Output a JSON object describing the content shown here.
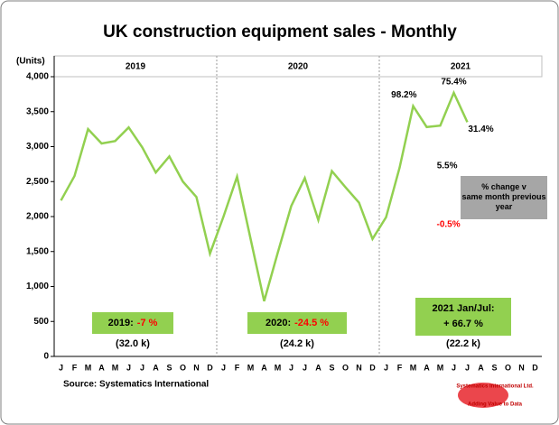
{
  "chart_data": {
    "type": "line",
    "title": "UK construction equipment sales - Monthly",
    "y_unit": "(Units)",
    "years": [
      "2019",
      "2020",
      "2021"
    ],
    "categories": [
      "J",
      "F",
      "M",
      "A",
      "M",
      "J",
      "J",
      "A",
      "S",
      "O",
      "N",
      "D",
      "J",
      "F",
      "M",
      "A",
      "M",
      "J",
      "J",
      "A",
      "S",
      "O",
      "N",
      "D",
      "J",
      "F",
      "M",
      "A",
      "M",
      "J",
      "J",
      "A",
      "S",
      "O",
      "N",
      "D"
    ],
    "series": [
      {
        "name": "Sales",
        "color": "#92d050",
        "values": [
          2230,
          2580,
          3250,
          3045,
          3080,
          3275,
          2990,
          2630,
          2860,
          2500,
          2280,
          1470,
          2000,
          2570,
          1680,
          790,
          1480,
          2150,
          2550,
          1950,
          2650,
          2420,
          2200,
          1680,
          1990,
          2700,
          3580,
          3280,
          3300,
          3770,
          3350,
          null,
          null,
          null,
          null,
          null
        ]
      }
    ],
    "ylim": [
      0,
      4000
    ],
    "yticks": [
      0,
      500,
      {
        "value": 1000,
        "label": "1,000"
      },
      {
        "value": 1500,
        "label": "1,500"
      },
      {
        "value": 2000,
        "label": "2,000"
      },
      {
        "value": 2500,
        "label": "2,500"
      },
      {
        "value": 3000,
        "label": "3,000"
      },
      {
        "value": 3500,
        "label": "3,500"
      },
      {
        "value": 4000,
        "label": "4,000"
      }
    ],
    "annotations": [
      {
        "text": "-0.5%",
        "color": "#ff0000"
      },
      {
        "text": "5.5%",
        "color": "#000000"
      },
      {
        "text": "98.2%",
        "color": "#000000"
      },
      {
        "text": "75.4%",
        "color": "#000000"
      },
      {
        "text": "31.4%",
        "color": "#000000"
      }
    ],
    "note": "% change v same month previous year",
    "summaries": [
      {
        "label": "2019:",
        "change": "-7 %",
        "change_color": "#ff0000",
        "total": "(32.0 k)"
      },
      {
        "label": "2020:",
        "change": "-24.5 %",
        "change_color": "#ff0000",
        "total": "(24.2 k)"
      },
      {
        "label": "2021 Jan/Jul:",
        "change": "+ 66.7 %",
        "change_color": "#000000",
        "total": "(22.2 k)"
      }
    ],
    "source": "Source: Systematics International",
    "logo": {
      "name": "Systematics International Ltd.",
      "tagline": "Adding Value to Data"
    }
  }
}
